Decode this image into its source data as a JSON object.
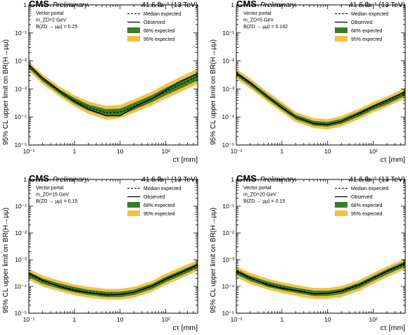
{
  "figure": {
    "ylabel": "95% CL upper limit on BR(H→μμ)",
    "xlabel": "cτ [mm]",
    "cms": "CMS",
    "preliminary": "Preliminary",
    "lumi": "41.6 fb⁻¹ (13 TeV)",
    "legend": [
      "Median expected",
      "Observed",
      "68% expected",
      "95% expected"
    ],
    "x_tick_labels": [
      "10⁻¹",
      "1",
      "10",
      "10²"
    ],
    "y_tick_labels": [
      "10⁻⁵",
      "10⁻⁴",
      "10⁻³",
      "10⁻²",
      "10⁻¹",
      "1"
    ],
    "colors": {
      "band68": "#3b7a2a",
      "band95": "#f5c04a",
      "median": "#000000",
      "observed": "#000000"
    }
  },
  "chart_data": [
    {
      "type": "line",
      "info": [
        "Vector portal",
        "m_ZD=2 GeV",
        "B(ZD → μμ) = 0.25"
      ],
      "xscale": "log",
      "yscale": "log",
      "xlim": [
        0.1,
        500
      ],
      "ylim": [
        1e-05,
        1
      ],
      "x": [
        0.1,
        0.2,
        0.5,
        1,
        2,
        5,
        10,
        20,
        50,
        100,
        200,
        500
      ],
      "series": [
        {
          "name": "Median expected",
          "values": [
            0.0065,
            0.0022,
            0.00075,
            0.00038,
            0.00022,
            0.00014,
            0.00015,
            0.00024,
            0.00045,
            0.0008,
            0.0014,
            0.0028
          ]
        },
        {
          "name": "Observed",
          "values": [
            0.0075,
            0.0025,
            0.0008,
            0.00036,
            0.00019,
            0.00011,
            0.00011,
            0.00022,
            0.00045,
            0.0009,
            0.0018,
            0.0036
          ]
        }
      ],
      "band68": [
        [
          0.0055,
          0.0078
        ],
        [
          0.0019,
          0.0027
        ],
        [
          0.00062,
          0.0009
        ],
        [
          0.0003,
          0.00048
        ],
        [
          0.00017,
          0.00028
        ],
        [
          0.000105,
          0.00019
        ],
        [
          0.000112,
          0.0002
        ],
        [
          0.00018,
          0.00032
        ],
        [
          0.00034,
          0.0006
        ],
        [
          0.0006,
          0.0011
        ],
        [
          0.001,
          0.0019
        ],
        [
          0.002,
          0.0038
        ]
      ],
      "band95": [
        [
          0.0045,
          0.0095
        ],
        [
          0.0015,
          0.0033
        ],
        [
          0.0005,
          0.00115
        ],
        [
          0.00024,
          0.0006
        ],
        [
          0.00013,
          0.00036
        ],
        [
          8e-05,
          0.00025
        ],
        [
          9e-05,
          0.00027
        ],
        [
          0.00014,
          0.00042
        ],
        [
          0.00026,
          0.0008
        ],
        [
          0.00045,
          0.0015
        ],
        [
          0.00075,
          0.0026
        ],
        [
          0.0015,
          0.0052
        ]
      ]
    },
    {
      "type": "line",
      "info": [
        "Vector portal",
        "m_ZD=5 GeV",
        "B(ZD → μμ) = 0.182"
      ],
      "xscale": "log",
      "yscale": "log",
      "xlim": [
        0.1,
        500
      ],
      "ylim": [
        1e-05,
        1
      ],
      "x": [
        0.1,
        0.2,
        0.5,
        1,
        2,
        5,
        10,
        20,
        50,
        100,
        200,
        500
      ],
      "series": [
        {
          "name": "Median expected",
          "values": [
            0.0035,
            0.0016,
            0.0005,
            0.00022,
            0.0001,
            6e-05,
            5.5e-05,
            7e-05,
            0.00013,
            0.00022,
            0.00035,
            0.0007
          ]
        },
        {
          "name": "Observed",
          "values": [
            0.0037,
            0.0017,
            0.0005,
            0.00021,
            0.0001,
            5.8e-05,
            5.3e-05,
            7e-05,
            0.00014,
            0.00024,
            0.0004,
            0.0008
          ]
        }
      ],
      "band68": [
        [
          0.0029,
          0.0042
        ],
        [
          0.0013,
          0.0019
        ],
        [
          0.00041,
          0.0006
        ],
        [
          0.00018,
          0.00027
        ],
        [
          8.2e-05,
          0.00012
        ],
        [
          4.9e-05,
          7.2e-05
        ],
        [
          4.5e-05,
          6.6e-05
        ],
        [
          5.7e-05,
          8.5e-05
        ],
        [
          0.000105,
          0.00016
        ],
        [
          0.00018,
          0.00027
        ],
        [
          0.00028,
          0.00043
        ],
        [
          0.00057,
          0.00086
        ]
      ],
      "band95": [
        [
          0.0023,
          0.0052
        ],
        [
          0.00105,
          0.0024
        ],
        [
          0.00033,
          0.00075
        ],
        [
          0.000145,
          0.00034
        ],
        [
          6.6e-05,
          0.00015
        ],
        [
          4e-05,
          9e-05
        ],
        [
          3.6e-05,
          8.3e-05
        ],
        [
          4.6e-05,
          0.00011
        ],
        [
          8.5e-05,
          0.0002
        ],
        [
          0.000145,
          0.00034
        ],
        [
          0.00023,
          0.00054
        ],
        [
          0.00046,
          0.0011
        ]
      ]
    },
    {
      "type": "line",
      "info": [
        "Vector portal",
        "m_ZD=15 GeV",
        "B(ZD → μμ) = 0.15"
      ],
      "xscale": "log",
      "yscale": "log",
      "xlim": [
        0.1,
        500
      ],
      "ylim": [
        1e-05,
        1
      ],
      "x": [
        0.1,
        0.2,
        0.5,
        1,
        2,
        5,
        10,
        20,
        50,
        100,
        200,
        500
      ],
      "series": [
        {
          "name": "Median expected",
          "values": [
            0.00028,
            0.00016,
            0.0001,
            7.5e-05,
            6e-05,
            5e-05,
            5e-05,
            6e-05,
            0.0001,
            0.00018,
            0.0003,
            0.0006
          ]
        },
        {
          "name": "Observed",
          "values": [
            0.00032,
            0.00017,
            9.5e-05,
            7e-05,
            5.8e-05,
            4.8e-05,
            5e-05,
            6e-05,
            0.000105,
            0.00019,
            0.00032,
            0.00065
          ]
        }
      ],
      "band68": [
        [
          0.00022,
          0.00035
        ],
        [
          0.000125,
          0.0002
        ],
        [
          8e-05,
          0.000125
        ],
        [
          6e-05,
          9.5e-05
        ],
        [
          4.8e-05,
          7.5e-05
        ],
        [
          4e-05,
          6.3e-05
        ],
        [
          4e-05,
          6.3e-05
        ],
        [
          4.8e-05,
          7.5e-05
        ],
        [
          8e-05,
          0.000125
        ],
        [
          0.000145,
          0.00023
        ],
        [
          0.00024,
          0.00038
        ],
        [
          0.00048,
          0.00075
        ]
      ],
      "band95": [
        [
          0.00017,
          0.00045
        ],
        [
          0.0001,
          0.00026
        ],
        [
          6.3e-05,
          0.00016
        ],
        [
          4.7e-05,
          0.00012
        ],
        [
          3.8e-05,
          9.7e-05
        ],
        [
          3.2e-05,
          8.1e-05
        ],
        [
          3.2e-05,
          8.1e-05
        ],
        [
          3.8e-05,
          9.7e-05
        ],
        [
          6.3e-05,
          0.00016
        ],
        [
          0.000115,
          0.0003
        ],
        [
          0.00019,
          0.0005
        ],
        [
          0.00038,
          0.00098
        ]
      ]
    },
    {
      "type": "line",
      "info": [
        "Vector portal",
        "m_ZD=20 GeV",
        "B(ZD → μμ) = 0.15"
      ],
      "xscale": "log",
      "yscale": "log",
      "xlim": [
        0.1,
        500
      ],
      "ylim": [
        1e-05,
        1
      ],
      "x": [
        0.1,
        0.2,
        0.5,
        1,
        2,
        5,
        10,
        20,
        50,
        100,
        200,
        500
      ],
      "series": [
        {
          "name": "Median expected",
          "values": [
            0.00035,
            0.0002,
            0.00012,
            9e-05,
            7.2e-05,
            5.5e-05,
            5.5e-05,
            6.5e-05,
            0.00011,
            0.0002,
            0.00035,
            0.0007
          ]
        },
        {
          "name": "Observed",
          "values": [
            0.00038,
            0.00021,
            0.00011,
            8.5e-05,
            7e-05,
            5.2e-05,
            5.5e-05,
            6.8e-05,
            0.00012,
            0.00021,
            0.00038,
            0.00075
          ]
        }
      ],
      "band68": [
        [
          0.00028,
          0.00044
        ],
        [
          0.00016,
          0.00025
        ],
        [
          9.6e-05,
          0.00015
        ],
        [
          7.2e-05,
          0.000113
        ],
        [
          5.8e-05,
          9e-05
        ],
        [
          4.4e-05,
          6.9e-05
        ],
        [
          4.4e-05,
          6.9e-05
        ],
        [
          5.2e-05,
          8.1e-05
        ],
        [
          8.8e-05,
          0.000138
        ],
        [
          0.00016,
          0.00025
        ],
        [
          0.00028,
          0.00044
        ],
        [
          0.00056,
          0.00088
        ]
      ],
      "band95": [
        [
          0.00022,
          0.00056
        ],
        [
          0.000125,
          0.00032
        ],
        [
          7.5e-05,
          0.00019
        ],
        [
          5.6e-05,
          0.000145
        ],
        [
          4.5e-05,
          0.000115
        ],
        [
          3.4e-05,
          8.8e-05
        ],
        [
          3.4e-05,
          8.8e-05
        ],
        [
          4e-05,
          0.000104
        ],
        [
          6.9e-05,
          0.000176
        ],
        [
          0.000125,
          0.00032
        ],
        [
          0.00022,
          0.00056
        ],
        [
          0.00044,
          0.00112
        ]
      ]
    }
  ]
}
